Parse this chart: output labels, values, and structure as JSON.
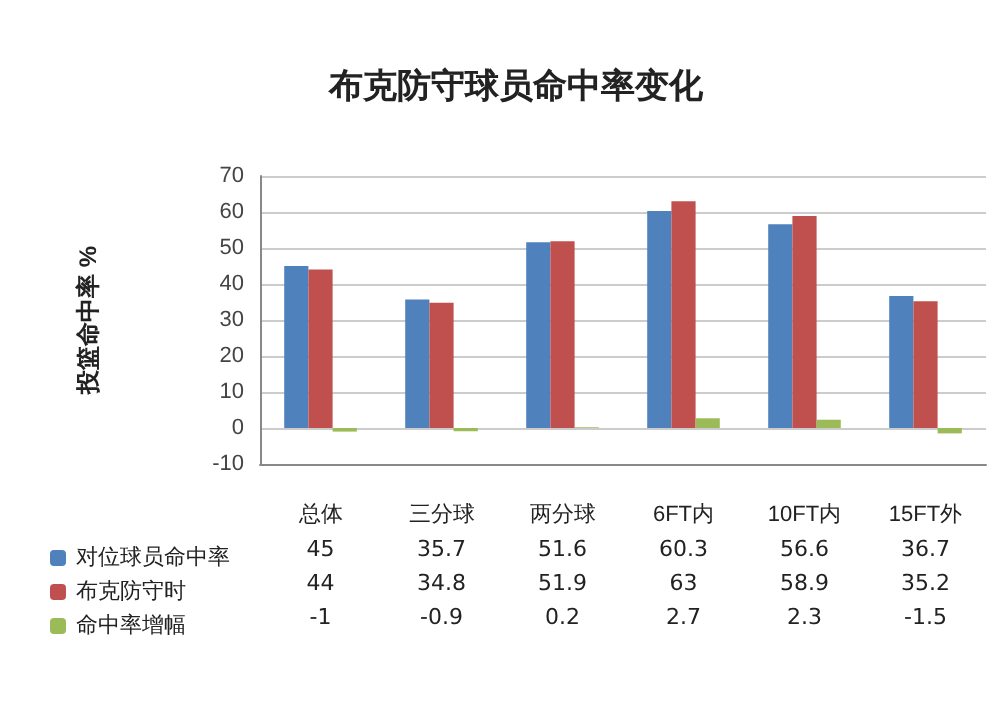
{
  "chart_data": {
    "type": "bar",
    "title": "布克防守球员命中率变化",
    "ylabel": "投篮命中率 %",
    "categories": [
      "总体",
      "三分球",
      "两分球",
      "6FT内",
      "10FT内",
      "15FT外"
    ],
    "series": [
      {
        "name": "对位球员命中率",
        "color": "#4f81bd",
        "values": [
          45,
          35.7,
          51.6,
          60.3,
          56.6,
          36.7
        ]
      },
      {
        "name": "布克防守时",
        "color": "#c0504d",
        "values": [
          44,
          34.8,
          51.9,
          63,
          58.9,
          35.2
        ]
      },
      {
        "name": "命中率增幅",
        "color": "#9bbb59",
        "values": [
          -1,
          -0.9,
          0.2,
          2.7,
          2.3,
          -1.5
        ]
      }
    ],
    "ylim": [
      -10,
      70
    ],
    "yticks": [
      -10,
      0,
      10,
      20,
      30,
      40,
      50,
      60,
      70
    ],
    "grid": "y",
    "legend": "bottom",
    "data_labels": true
  }
}
